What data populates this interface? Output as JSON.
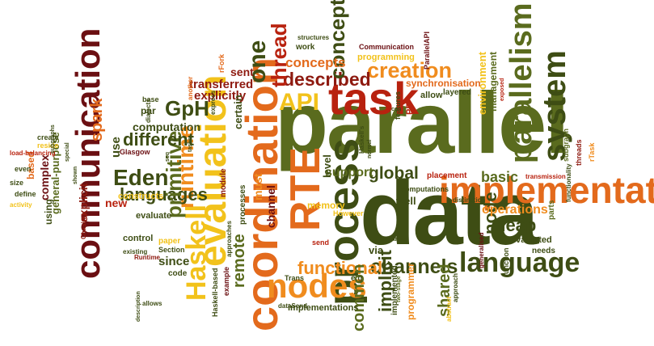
{
  "words": {
    "parallel": "parallel",
    "data": "data",
    "coordination": "coordination",
    "implementation": "implementation",
    "process": "process",
    "task": "task",
    "evaluation": "evaluation",
    "language": "language",
    "communication": "communication",
    "rte": "RTE",
    "nodes": "nodes",
    "haskell": "Haskell",
    "system": "system",
    "parallelism": "parallelism",
    "creation": "creation",
    "described": "described",
    "api": "API",
    "runtime": "runtime",
    "eden": "Eden",
    "languages": "languages",
    "channels": "channels",
    "gph": "GpH",
    "primitive": "primitive",
    "concept": "concept",
    "one": "one",
    "thread": "thread",
    "concepts": "concepts",
    "functional": "functional",
    "global": "global",
    "heap": "heap",
    "node": "node",
    "implicit": "implicit",
    "common": "common",
    "shared": "shared",
    "remote": "remote",
    "spark": "spark",
    "different": "different",
    "computation": "computation",
    "operations": "operations",
    "basic": "basic",
    "support": "support",
    "synchronisation": "synchronisation",
    "environment": "environment",
    "management": "management",
    "programming": "programming",
    "communication_small": "Communication",
    "parallelapi": "ParallelAPI",
    "transferred": "transferred",
    "explicitly": "explicitly",
    "sent": "sent",
    "express": "express",
    "rfork": "rFork",
    "explicit": "explicit",
    "general_purpose": "general-purpose",
    "complex": "complex",
    "based": "based",
    "using": "using",
    "new": "new",
    "constructs": "constructs",
    "evaluate": "evaluate",
    "since": "since",
    "memory": "memory",
    "must": "must",
    "channel": "channel",
    "level": "level",
    "allow": "allow",
    "layered": "layered",
    "pe": "PE",
    "features": "features",
    "well": "well",
    "computations": "computations",
    "via": "via",
    "placement": "placement",
    "evaluated": "evaluated",
    "parts": "parts",
    "subgraph": "subgraph",
    "threads": "threads",
    "rtask": "rTask",
    "needs": "needs",
    "function": "function",
    "implementations": "implementations",
    "programmer": "programmer",
    "implemented": "implemented",
    "module": "module",
    "processes": "processes",
    "certain": "certain",
    "use": "use",
    "par": "par",
    "base": "base",
    "dialects": "dialects",
    "glasgow": "Glasgow",
    "paper": "paper",
    "section": "Section",
    "runtime_small": "Runtime",
    "code": "code",
    "control": "control",
    "example": "example",
    "haskell_based": "Haskell-based",
    "trans": "Trans",
    "eg": "e.g",
    "structures": "structures",
    "work": "work",
    "create": "create",
    "reside": "reside",
    "load_balancing": "load-balancing",
    "even": "even",
    "size": "size",
    "define": "define",
    "activity": "activity",
    "however": "However",
    "send": "send",
    "approaches": "approaches",
    "dynamic": "dynamic",
    "distinction": "distinction",
    "transmission": "transmission",
    "functionality": "functionality",
    "generalised": "generalised",
    "approach": "approach",
    "two_stage": "two-stage",
    "abstract": "abstract",
    "existing": "existing",
    "allows": "allows",
    "description": "description",
    "datasend": "dataSend",
    "chasing": "Chasing",
    "another": "another",
    "special": "special",
    "subgraphs": "subgraphs",
    "shown": "shown",
    "exposed": "exposed",
    "normal": "normal",
    "tasks": "tasks",
    "seq": "seq",
    "con": "con",
    "haskells": "Haskell's"
  }
}
